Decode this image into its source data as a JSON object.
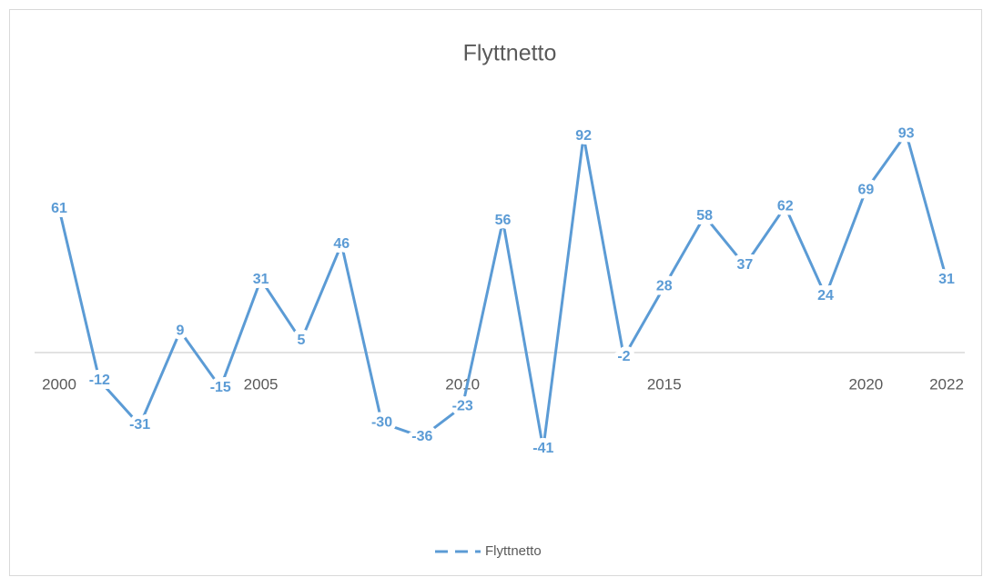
{
  "chart_data": {
    "type": "line",
    "title": "Flyttnetto",
    "categories": [
      "2000",
      null,
      null,
      null,
      null,
      "2005",
      null,
      null,
      null,
      null,
      "2010",
      null,
      null,
      null,
      null,
      "2015",
      null,
      null,
      null,
      null,
      "2020",
      null,
      "2022"
    ],
    "series": [
      {
        "name": "Flyttnetto",
        "color": "#5b9bd5",
        "values": [
          61,
          -12,
          -31,
          9,
          -15,
          31,
          5,
          46,
          -30,
          -36,
          -23,
          56,
          -41,
          92,
          -2,
          28,
          58,
          37,
          62,
          24,
          69,
          93,
          31
        ]
      }
    ],
    "ylim": [
      -60,
      100
    ],
    "legend": "bottom"
  }
}
